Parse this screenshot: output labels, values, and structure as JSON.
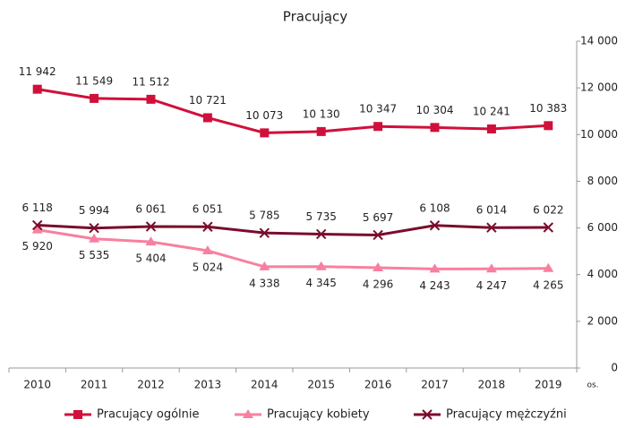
{
  "chart_data": {
    "type": "line",
    "title": "Pracujący",
    "categories": [
      "2010",
      "2011",
      "2012",
      "2013",
      "2014",
      "2015",
      "2016",
      "2017",
      "2018",
      "2019"
    ],
    "x_unit_label": "os.",
    "series": [
      {
        "name": "Pracujący ogólnie",
        "color": "#d0103a",
        "marker": "square",
        "values": [
          11942,
          11549,
          11512,
          10721,
          10073,
          10130,
          10347,
          10304,
          10241,
          10383
        ],
        "value_labels": [
          "11 942",
          "11 549",
          "11 512",
          "10 721",
          "10 073",
          "10 130",
          "10 347",
          "10 304",
          "10 241",
          "10 383"
        ],
        "label_position": "above"
      },
      {
        "name": "Pracujący kobiety",
        "color": "#f7809f",
        "marker": "triangle",
        "values": [
          5920,
          5535,
          5404,
          5024,
          4338,
          4345,
          4296,
          4243,
          4247,
          4265
        ],
        "value_labels": [
          "5 920",
          "5 535",
          "5 404",
          "5 024",
          "4 338",
          "4 345",
          "4 296",
          "4 243",
          "4 247",
          "4 265"
        ],
        "label_position": "below"
      },
      {
        "name": "Pracujący mężczyźni",
        "color": "#7a0c2c",
        "marker": "x",
        "values": [
          6118,
          5994,
          6061,
          6051,
          5785,
          5735,
          5697,
          6108,
          6014,
          6022
        ],
        "value_labels": [
          "6 118",
          "5 994",
          "6 061",
          "6 051",
          "5 785",
          "5 735",
          "5 697",
          "6 108",
          "6 014",
          "6 022"
        ],
        "label_position": "above"
      }
    ],
    "ylim": [
      0,
      14000
    ],
    "yticks": [
      0,
      {
        "value": 2000,
        "label": "2 000"
      },
      {
        "value": 4000,
        "label": "4 000"
      },
      {
        "value": 6000,
        "label": "6 000"
      },
      {
        "value": 8000,
        "label": "8 000"
      },
      {
        "value": 10000,
        "label": "10 000"
      },
      {
        "value": 12000,
        "label": "12 000"
      },
      {
        "value": 14000,
        "label": "14 000"
      }
    ],
    "y_axis_side": "right",
    "grid": false,
    "legend": "bottom"
  }
}
